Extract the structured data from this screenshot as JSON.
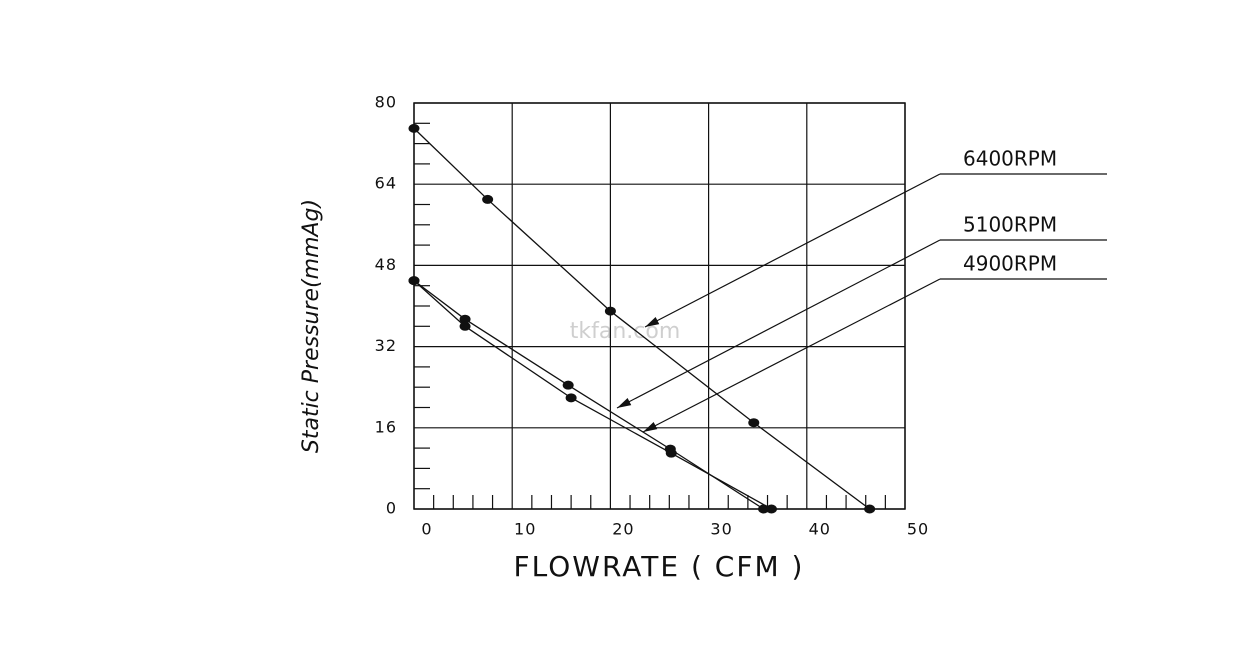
{
  "chart_data": {
    "type": "line",
    "x_label": "FLOWRATE ( CFM )",
    "y_label": "Static Pressure(mmAg)",
    "watermark": "tkfan.com",
    "xlim": [
      0,
      50
    ],
    "xticks": [
      0,
      10,
      20,
      30,
      40,
      50
    ],
    "ylim": [
      0,
      80
    ],
    "yticks": [
      0,
      16,
      32,
      48,
      64,
      80
    ],
    "minor_xticks": [
      2,
      4,
      6,
      8,
      12,
      14,
      16,
      18,
      22,
      24,
      26,
      28,
      32,
      34,
      36,
      38,
      42,
      44,
      46,
      48
    ],
    "minor_yticks": [
      4,
      8,
      12,
      20,
      24,
      28,
      36,
      40,
      44,
      52,
      56,
      60,
      68,
      72,
      76
    ],
    "grid": true,
    "series": [
      {
        "name": "6400RPM",
        "color": "#111111",
        "x": [
          0,
          7.5,
          20,
          34.6,
          46.4
        ],
        "values": [
          75,
          61,
          39,
          17,
          0
        ]
      },
      {
        "name": "5100RPM",
        "color": "#111111",
        "x": [
          0,
          5.2,
          15.7,
          26.1,
          35.6
        ],
        "values": [
          45,
          37.4,
          24.4,
          11.8,
          0
        ]
      },
      {
        "name": "4900RPM",
        "color": "#111111",
        "x": [
          0,
          5.2,
          16,
          26.2,
          36.4
        ],
        "values": [
          45,
          36,
          21.9,
          11,
          0
        ]
      }
    ]
  }
}
